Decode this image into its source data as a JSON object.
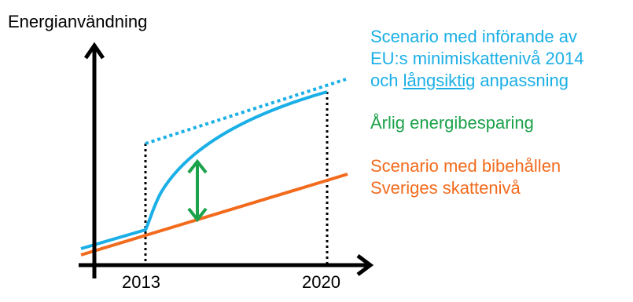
{
  "y_axis_label": "Energianvändning",
  "x_ticks": [
    "2013",
    "2020"
  ],
  "legend": {
    "eu_scenario": {
      "line1": "Scenario med införande av",
      "line2": "EU:s minimiskattenivå 2014",
      "line3_prefix": "och ",
      "line3_underlined": "långsiktig",
      "line3_suffix": " anpassning",
      "color": "#1AAFE6"
    },
    "energy_saving": {
      "text": "Årlig energibesparing",
      "color": "#1BA24A"
    },
    "se_scenario": {
      "line1": "Scenario med bibehållen",
      "line2": "Sveriges skattenivå",
      "color": "#F26B1D"
    }
  }
}
